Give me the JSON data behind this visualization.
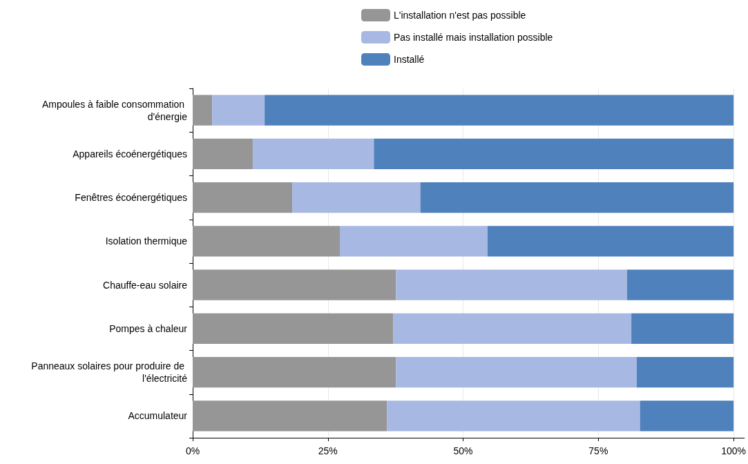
{
  "chart_data": {
    "type": "bar",
    "orientation": "horizontal",
    "stacked": true,
    "categories": [
      "Ampoules à faible consommation d'énergie",
      "Appareils écoénergétiques",
      "Fenêtres écoénergétiques",
      "Isolation thermique",
      "Chauffe-eau solaire",
      "Pompes à chaleur",
      "Panneaux solaires pour produire de l'électricité",
      "Accumulateur"
    ],
    "series": [
      {
        "name": "L'installation n'est pas possible",
        "color": "#969696",
        "values": [
          3.6,
          11.1,
          18.4,
          27.2,
          37.6,
          37.1,
          37.6,
          35.9
        ]
      },
      {
        "name": "Pas installé mais installation possible",
        "color": "#a7b8e2",
        "values": [
          9.7,
          22.4,
          23.7,
          27.3,
          42.7,
          44.0,
          44.5,
          46.8
        ]
      },
      {
        "name": "Installé",
        "color": "#4f81bd",
        "values": [
          86.7,
          66.5,
          57.9,
          45.5,
          19.7,
          18.9,
          17.9,
          17.3
        ]
      }
    ],
    "xlim": [
      0,
      102
    ],
    "xticks": [
      {
        "value": 0,
        "label": "0%"
      },
      {
        "value": 25,
        "label": "25%"
      },
      {
        "value": 50,
        "label": "50%"
      },
      {
        "value": 75,
        "label": "75%"
      },
      {
        "value": 100,
        "label": "100%"
      }
    ],
    "grid": "x",
    "legend": "top"
  }
}
